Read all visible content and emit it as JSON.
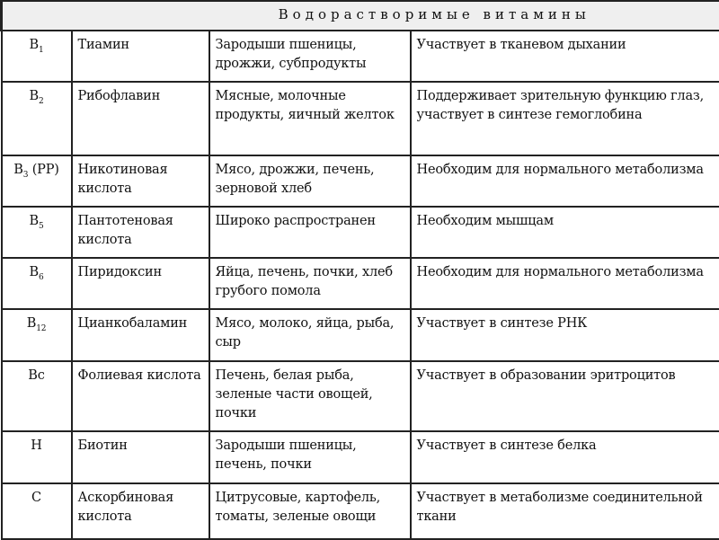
{
  "title": "Водорастворимые витамины",
  "rows": [
    {
      "code": "B",
      "sub": "1",
      "suffix": "",
      "name": "Тиамин",
      "sources": "Зародыши пшеницы, дрожжи, субпродукты",
      "function": "Участвует в тканевом дыхании"
    },
    {
      "code": "B",
      "sub": "2",
      "suffix": "",
      "name": "Рибофлавин",
      "sources": "Мясные, молочные продукты, яичный желток",
      "function": "Поддерживает зрительную функцию глаз, участвует в синтезе гемоглобина"
    },
    {
      "code": "B",
      "sub": "3",
      "suffix": " (PP)",
      "name": "Никотиновая кислота",
      "sources": "Мясо, дрожжи, печень, зерновой хлеб",
      "function": "Необходим для нормального метаболизма"
    },
    {
      "code": "B",
      "sub": "5",
      "suffix": "",
      "name": "Пантотеновая кислота",
      "sources": "Широко распространен",
      "function": "Необходим мышцам"
    },
    {
      "code": "B",
      "sub": "6",
      "suffix": "",
      "name": "Пиридоксин",
      "sources": "Яйца, печень, почки, хлеб грубого помола",
      "function": "Необходим для нормального метаболизма"
    },
    {
      "code": "B",
      "sub": "12",
      "suffix": "",
      "name": "Цианкобаламин",
      "sources": "Мясо, молоко, яйца, рыба, сыр",
      "function": "Участвует в синтезе РНК"
    },
    {
      "code": "Bc",
      "sub": "",
      "suffix": "",
      "name": "Фолиевая кислота",
      "sources": "Печень, белая рыба, зеленые части овощей, почки",
      "function": "Участвует в образовании эритроцитов"
    },
    {
      "code": "H",
      "sub": "",
      "suffix": "",
      "name": "Биотин",
      "sources": "Зародыши пшеницы, печень, почки",
      "function": "Участвует в синтезе белка"
    },
    {
      "code": "C",
      "sub": "",
      "suffix": "",
      "name": "Аскорбиновая кислота",
      "sources": "Цитрусовые, картофель, томаты, зеленые овощи",
      "function": "Участвует в метаболизме соединительной ткани"
    }
  ]
}
